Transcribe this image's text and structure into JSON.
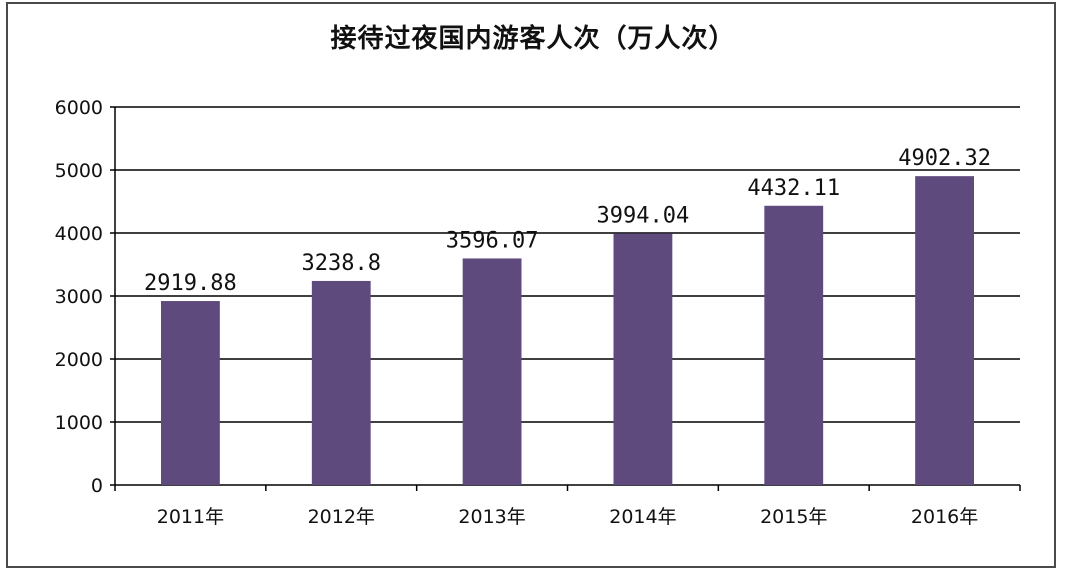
{
  "chart_data": {
    "type": "bar",
    "title": "接待过夜国内游客人次（万人次）",
    "categories": [
      "2011年",
      "2012年",
      "2013年",
      "2014年",
      "2015年",
      "2016年"
    ],
    "values": [
      2919.88,
      3238.8,
      3596.07,
      3994.04,
      4432.11,
      4902.32
    ],
    "data_labels": [
      "2919.88",
      "3238.8",
      "3596.07",
      "3994.04",
      "4432.11",
      "4902.32"
    ],
    "ylim": [
      0,
      6000
    ],
    "yticks": [
      "0",
      "1000",
      "2000",
      "3000",
      "4000",
      "5000",
      "6000"
    ],
    "xlabel": "",
    "ylabel": "",
    "grid": true,
    "legend": "none",
    "bar_color": "#5e4a7c"
  }
}
